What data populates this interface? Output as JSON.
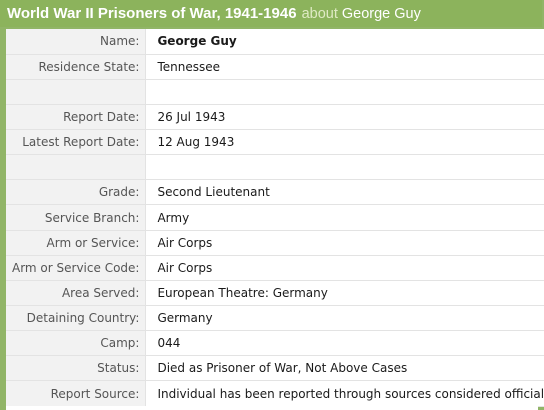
{
  "header": {
    "title": "World War II Prisoners of War, 1941-1946",
    "about": "about",
    "person": "George Guy"
  },
  "rows": [
    {
      "label": "Name:",
      "value": "George Guy"
    },
    {
      "label": "Residence State:",
      "value": "Tennessee"
    },
    {
      "label": "",
      "value": ""
    },
    {
      "label": "Report Date:",
      "value": "26 Jul 1943"
    },
    {
      "label": "Latest Report Date:",
      "value": "12 Aug 1943"
    },
    {
      "label": "",
      "value": ""
    },
    {
      "label": "Grade:",
      "value": "Second Lieutenant"
    },
    {
      "label": "Service Branch:",
      "value": "Army"
    },
    {
      "label": "Arm or Service:",
      "value": "Air Corps"
    },
    {
      "label": "Arm or Service Code:",
      "value": "Air Corps"
    },
    {
      "label": "Area Served:",
      "value": "European Theatre: Germany"
    },
    {
      "label": "Detaining Country:",
      "value": "Germany"
    },
    {
      "label": "Camp:",
      "value": "044"
    },
    {
      "label": "Status:",
      "value": "Died as Prisoner of War, Not Above Cases"
    },
    {
      "label": "Report Source:",
      "value": "Individual has been reported through sources considered official."
    }
  ],
  "colors": {
    "header_green": "#8cb35c",
    "label_background": "#f2f2f2"
  }
}
